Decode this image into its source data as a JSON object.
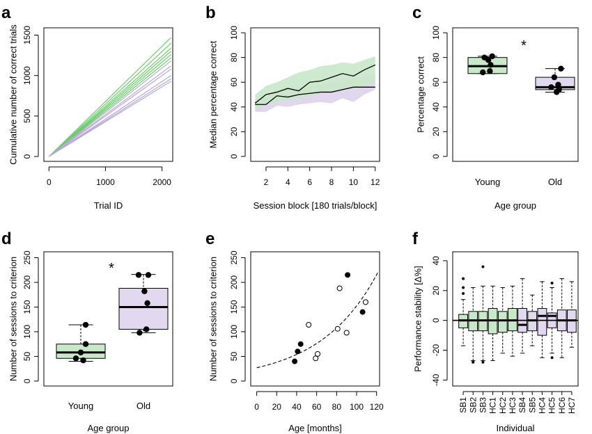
{
  "colors": {
    "green": "#6ccc6c",
    "purple": "#b9a7d6",
    "green_fill": "#c9e8c9",
    "purple_fill": "#ddd3ea",
    "purple_box": "#e2d9f0"
  },
  "chart_data": [
    {
      "panel": "a",
      "type": "line",
      "xlabel": "Trial ID",
      "ylabel": "Cumulative number of correct trials",
      "xlim": [
        0,
        2150
      ],
      "ylim": [
        0,
        1550
      ],
      "xticks": [
        "0",
        "1000",
        "2000"
      ],
      "xtick_values": [
        0,
        1000,
        2000
      ],
      "yticks": [
        "0",
        "500",
        "1000",
        "1500"
      ],
      "ytick_values": [
        0,
        500,
        1000,
        1500
      ],
      "series": [
        {
          "group": "Young",
          "color": "green",
          "x": [
            0,
            2160
          ],
          "y": [
            0,
            1470
          ]
        },
        {
          "group": "Young",
          "color": "green",
          "x": [
            0,
            2160
          ],
          "y": [
            0,
            1400
          ]
        },
        {
          "group": "Young",
          "color": "green",
          "x": [
            0,
            2160
          ],
          "y": [
            0,
            1340
          ]
        },
        {
          "group": "Young",
          "color": "green",
          "x": [
            0,
            2160
          ],
          "y": [
            0,
            1300
          ]
        },
        {
          "group": "Young",
          "color": "green",
          "x": [
            0,
            2160
          ],
          "y": [
            0,
            1260
          ]
        },
        {
          "group": "Young",
          "color": "green",
          "x": [
            0,
            2160
          ],
          "y": [
            0,
            1220
          ]
        },
        {
          "group": "Old",
          "color": "purple",
          "x": [
            0,
            2160
          ],
          "y": [
            0,
            1180
          ]
        },
        {
          "group": "Old",
          "color": "purple",
          "x": [
            0,
            2160
          ],
          "y": [
            0,
            1120
          ]
        },
        {
          "group": "Old",
          "color": "purple",
          "x": [
            0,
            2160
          ],
          "y": [
            0,
            1080
          ]
        },
        {
          "group": "Old",
          "color": "purple",
          "x": [
            0,
            2160
          ],
          "y": [
            0,
            1000
          ]
        },
        {
          "group": "Old",
          "color": "purple",
          "x": [
            0,
            2160
          ],
          "y": [
            0,
            960
          ]
        },
        {
          "group": "Old",
          "color": "purple",
          "x": [
            0,
            2160
          ],
          "y": [
            0,
            930
          ]
        }
      ]
    },
    {
      "panel": "b",
      "type": "line",
      "xlabel": "Session block [180 trials/block]",
      "ylabel": "Median percentage correct",
      "xlim": [
        1,
        12
      ],
      "ylim": [
        0,
        100
      ],
      "xticks": [
        "2",
        "4",
        "6",
        "8",
        "10",
        "12"
      ],
      "xtick_values": [
        2,
        4,
        6,
        8,
        10,
        12
      ],
      "yticks": [
        "0",
        "20",
        "40",
        "60",
        "80",
        "100"
      ],
      "ytick_values": [
        0,
        20,
        40,
        60,
        80,
        100
      ],
      "x": [
        1,
        2,
        3,
        4,
        5,
        6,
        7,
        8,
        9,
        10,
        11,
        12
      ],
      "series": [
        {
          "group": "Young",
          "color": "green",
          "median": [
            43,
            50,
            52,
            55,
            53,
            60,
            61,
            64,
            67,
            65,
            70,
            74
          ],
          "lower": [
            38,
            42,
            44,
            46,
            47,
            49,
            51,
            53,
            54,
            55,
            57,
            60
          ],
          "upper": [
            50,
            57,
            60,
            64,
            68,
            70,
            73,
            74,
            76,
            75,
            78,
            81
          ]
        },
        {
          "group": "Old",
          "color": "purple",
          "median": [
            42,
            42,
            49,
            48,
            50,
            51,
            52,
            52,
            54,
            56,
            56,
            56
          ],
          "lower": [
            36,
            36,
            41,
            40,
            42,
            43,
            44,
            43,
            47,
            44,
            50,
            54
          ],
          "upper": [
            46,
            48,
            54,
            56,
            56,
            57,
            58,
            60,
            62,
            63,
            65,
            65
          ]
        }
      ]
    },
    {
      "panel": "c",
      "type": "box",
      "xlabel": "Age group",
      "ylabel": "Percentage correct",
      "ylim": [
        0,
        100
      ],
      "categories": [
        "Young",
        "Old"
      ],
      "yticks": [
        "0",
        "20",
        "40",
        "60",
        "80",
        "100"
      ],
      "ytick_values": [
        0,
        20,
        40,
        60,
        80,
        100
      ],
      "boxes": [
        {
          "color": "green",
          "whisker_low": 67,
          "q1": 67,
          "median": 73,
          "q3": 80,
          "whisker_high": 81
        },
        {
          "color": "purple",
          "whisker_low": 52,
          "q1": 54,
          "median": 56,
          "q3": 64,
          "whisker_high": 71
        }
      ],
      "points": [
        [
          {
            "x": -0.08,
            "y": 80
          },
          {
            "x": 0.12,
            "y": 81
          },
          {
            "x": 0.02,
            "y": 78
          },
          {
            "x": 0.08,
            "y": 74
          },
          {
            "x": -0.12,
            "y": 68
          },
          {
            "x": 0.06,
            "y": 69
          }
        ],
        [
          {
            "x": 0.15,
            "y": 71
          },
          {
            "x": -0.02,
            "y": 64
          },
          {
            "x": 0.08,
            "y": 58
          },
          {
            "x": -0.1,
            "y": 56
          },
          {
            "x": 0.1,
            "y": 54
          },
          {
            "x": 0.04,
            "y": 52
          }
        ]
      ],
      "annotation": "*"
    },
    {
      "panel": "d",
      "type": "box",
      "xlabel": "Age group",
      "ylabel": "Number of sessions to criterion",
      "ylim": [
        0,
        250
      ],
      "categories": [
        "Young",
        "Old"
      ],
      "yticks": [
        "0",
        "50",
        "100",
        "150",
        "200",
        "250"
      ],
      "ytick_values": [
        0,
        50,
        100,
        150,
        200,
        250
      ],
      "boxes": [
        {
          "color": "green",
          "whisker_low": 40,
          "q1": 46,
          "median": 58,
          "q3": 75,
          "whisker_high": 114
        },
        {
          "color": "purple",
          "whisker_low": 98,
          "q1": 105,
          "median": 150,
          "q3": 188,
          "whisker_high": 216
        }
      ],
      "points": [
        [
          {
            "x": 0.1,
            "y": 114
          },
          {
            "x": 0.1,
            "y": 75
          },
          {
            "x": 0.0,
            "y": 58
          },
          {
            "x": -0.1,
            "y": 46
          },
          {
            "x": 0.05,
            "y": 42
          }
        ],
        [
          {
            "x": -0.1,
            "y": 215
          },
          {
            "x": 0.1,
            "y": 215
          },
          {
            "x": 0.02,
            "y": 182
          },
          {
            "x": 0.08,
            "y": 158
          },
          {
            "x": 0.06,
            "y": 105
          },
          {
            "x": -0.08,
            "y": 98
          }
        ]
      ],
      "annotation": "*"
    },
    {
      "panel": "e",
      "type": "scatter",
      "xlabel": "Age [months]",
      "ylabel": "Number of sessions to criterion",
      "xlim": [
        0,
        120
      ],
      "ylim": [
        0,
        250
      ],
      "xticks": [
        "0",
        "20",
        "40",
        "60",
        "80",
        "100",
        "120"
      ],
      "xtick_values": [
        0,
        20,
        40,
        60,
        80,
        100,
        120
      ],
      "yticks": [
        "0",
        "50",
        "100",
        "150",
        "200",
        "250"
      ],
      "ytick_values": [
        0,
        50,
        100,
        150,
        200,
        250
      ],
      "filled": [
        {
          "x": 38,
          "y": 40
        },
        {
          "x": 41,
          "y": 60
        },
        {
          "x": 44,
          "y": 75
        },
        {
          "x": 91,
          "y": 215
        },
        {
          "x": 106,
          "y": 140
        }
      ],
      "open": [
        {
          "x": 52,
          "y": 114
        },
        {
          "x": 59,
          "y": 46
        },
        {
          "x": 61,
          "y": 55
        },
        {
          "x": 81,
          "y": 106
        },
        {
          "x": 83,
          "y": 188
        },
        {
          "x": 90,
          "y": 98
        },
        {
          "x": 109,
          "y": 160
        }
      ],
      "fit": {
        "type": "exponential",
        "a": 27,
        "b": 0.0173
      }
    },
    {
      "panel": "f",
      "type": "box",
      "xlabel": "Individual",
      "ylabel": "Performance stability [Δ%]",
      "ylim": [
        -40,
        40
      ],
      "yticks": [
        "-40",
        "-20",
        "0",
        "20",
        "40"
      ],
      "ytick_values": [
        -40,
        -20,
        0,
        20,
        40
      ],
      "categories": [
        "SB1",
        "SB2",
        "SB3",
        "HC1",
        "HC2",
        "HC3",
        "SB4",
        "SB5",
        "HC4",
        "HC5",
        "HC6",
        "HC7"
      ],
      "boxes": [
        {
          "color": "green",
          "whisker_low": -17,
          "q1": -5,
          "median": 0,
          "q3": 4,
          "whisker_high": 14,
          "outliers": [
            18,
            22,
            28
          ]
        },
        {
          "color": "green",
          "whisker_low": -27,
          "q1": -7,
          "median": 0,
          "q3": 6,
          "whisker_high": 22,
          "outliers": [
            -28
          ]
        },
        {
          "color": "green",
          "whisker_low": -27,
          "q1": -7,
          "median": 0,
          "q3": 6,
          "whisker_high": 23,
          "outliers": [
            -28,
            36
          ]
        },
        {
          "color": "green",
          "whisker_low": -27,
          "q1": -9,
          "median": 0,
          "q3": 8,
          "whisker_high": 23,
          "outliers": []
        },
        {
          "color": "green",
          "whisker_low": -22,
          "q1": -8,
          "median": 0,
          "q3": 6,
          "whisker_high": 22,
          "outliers": []
        },
        {
          "color": "green",
          "whisker_low": -24,
          "q1": -7,
          "median": 0,
          "q3": 8,
          "whisker_high": 23,
          "outliers": []
        },
        {
          "color": "purple",
          "whisker_low": -22,
          "q1": -8,
          "median": -3,
          "q3": 8,
          "whisker_high": 28,
          "outliers": []
        },
        {
          "color": "purple",
          "whisker_low": -17,
          "q1": -7,
          "median": 0,
          "q3": 6,
          "whisker_high": 17,
          "outliers": []
        },
        {
          "color": "purple",
          "whisker_low": -25,
          "q1": -10,
          "median": 3,
          "q3": 8,
          "whisker_high": 26,
          "outliers": []
        },
        {
          "color": "purple",
          "whisker_low": -22,
          "q1": -5,
          "median": 3,
          "q3": 5,
          "whisker_high": 22,
          "outliers": [
            25,
            -25
          ]
        },
        {
          "color": "purple",
          "whisker_low": -25,
          "q1": -7,
          "median": 0,
          "q3": 7,
          "whisker_high": 28,
          "outliers": []
        },
        {
          "color": "purple",
          "whisker_low": -18,
          "q1": -8,
          "median": 0,
          "q3": 7,
          "whisker_high": 26,
          "outliers": []
        }
      ]
    }
  ]
}
